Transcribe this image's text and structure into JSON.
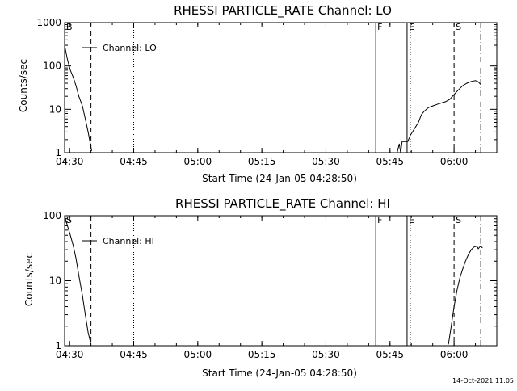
{
  "footer": {
    "timestamp": "14-Oct-2021 11:05"
  },
  "chart_data": [
    {
      "type": "line",
      "title": "RHESSI PARTICLE_RATE Channel: LO",
      "xlabel": "Start Time (24-Jan-05 04:28:50)",
      "ylabel": "Counts/sec",
      "yscale": "log",
      "ylim": [
        1,
        1000
      ],
      "xlim": [
        "04:28:50",
        "06:10:00"
      ],
      "x_ticks": [
        "04:30",
        "04:45",
        "05:00",
        "05:15",
        "05:30",
        "05:45",
        "06:00"
      ],
      "y_ticks": [
        "1",
        "10",
        "100",
        "1000"
      ],
      "legend": {
        "label": "Channel: LO",
        "placement": "top-left"
      },
      "markers": [
        {
          "label": "B",
          "time": "04:28:50",
          "style": "solid"
        },
        {
          "label": "",
          "time": "04:35:00",
          "style": "dashed"
        },
        {
          "label": "",
          "time": "04:45:00",
          "style": "dotted"
        },
        {
          "label": "F",
          "time": "05:41:40",
          "style": "solid"
        },
        {
          "label": "E",
          "time": "05:49:00",
          "style": "solid"
        },
        {
          "label": "",
          "time": "05:49:45",
          "style": "dotted"
        },
        {
          "label": "S",
          "time": "06:00:00",
          "style": "dashed"
        },
        {
          "label": "",
          "time": "06:06:15",
          "style": "dashdot"
        }
      ],
      "series": [
        {
          "color": "#000000",
          "segments": [
            [
              [
                "04:28:50",
                300
              ],
              [
                "04:29:30",
                140
              ],
              [
                "04:30:10",
                80
              ],
              [
                "04:30:50",
                55
              ],
              [
                "04:31:30",
                35
              ],
              [
                "04:32:10",
                20
              ],
              [
                "04:33:00",
                12
              ],
              [
                "04:33:40",
                6
              ],
              [
                "04:34:20",
                3
              ],
              [
                "04:35:10",
                1.1
              ]
            ],
            [
              [
                "05:46:40",
                1
              ],
              [
                "05:47:10",
                1.6
              ],
              [
                "05:47:30",
                1
              ],
              [
                "05:47:50",
                1.8
              ],
              [
                "05:49:10",
                1.8
              ],
              [
                "05:49:45",
                2.5
              ],
              [
                "05:50:40",
                3.5
              ],
              [
                "05:51:40",
                5
              ],
              [
                "05:52:20",
                7.5
              ],
              [
                "05:53:00",
                9
              ],
              [
                "05:54:00",
                11
              ],
              [
                "05:55:00",
                12
              ],
              [
                "05:56:00",
                13
              ],
              [
                "05:57:00",
                14
              ],
              [
                "05:58:00",
                15
              ],
              [
                "05:59:00",
                17
              ],
              [
                "06:00:00",
                22
              ],
              [
                "06:01:00",
                28
              ],
              [
                "06:02:00",
                35
              ],
              [
                "06:03:00",
                40
              ],
              [
                "06:04:00",
                44
              ],
              [
                "06:05:00",
                46
              ],
              [
                "06:05:40",
                43
              ],
              [
                "06:06:10",
                38
              ]
            ]
          ]
        }
      ]
    },
    {
      "type": "line",
      "title": "RHESSI PARTICLE_RATE Channel: HI",
      "xlabel": "Start Time (24-Jan-05 04:28:50)",
      "ylabel": "Counts/sec",
      "yscale": "log",
      "ylim": [
        1,
        100
      ],
      "xlim": [
        "04:28:50",
        "06:10:00"
      ],
      "x_ticks": [
        "04:30",
        "04:45",
        "05:00",
        "05:15",
        "05:30",
        "05:45",
        "06:00"
      ],
      "y_ticks": [
        "1",
        "10",
        "100"
      ],
      "legend": {
        "label": "Channel: HI",
        "placement": "top-left"
      },
      "markers": [
        {
          "label": "S",
          "time": "04:28:50",
          "style": "solid"
        },
        {
          "label": "",
          "time": "04:35:00",
          "style": "dashed"
        },
        {
          "label": "",
          "time": "04:45:00",
          "style": "dotted"
        },
        {
          "label": "F",
          "time": "05:41:40",
          "style": "solid"
        },
        {
          "label": "E",
          "time": "05:49:00",
          "style": "solid"
        },
        {
          "label": "",
          "time": "05:49:45",
          "style": "dotted"
        },
        {
          "label": "S",
          "time": "06:00:00",
          "style": "dashed"
        },
        {
          "label": "",
          "time": "06:06:15",
          "style": "dashdot"
        }
      ],
      "series": [
        {
          "color": "#000000",
          "segments": [
            [
              [
                "04:28:50",
                100
              ],
              [
                "04:29:30",
                70
              ],
              [
                "04:30:10",
                50
              ],
              [
                "04:30:50",
                35
              ],
              [
                "04:31:30",
                22
              ],
              [
                "04:32:10",
                12
              ],
              [
                "04:33:00",
                6
              ],
              [
                "04:33:40",
                3
              ],
              [
                "04:34:20",
                1.6
              ],
              [
                "04:35:00",
                1.05
              ]
            ],
            [
              [
                "05:58:40",
                1.05
              ],
              [
                "05:59:20",
                2
              ],
              [
                "06:00:00",
                4
              ],
              [
                "06:00:40",
                7
              ],
              [
                "06:01:20",
                11
              ],
              [
                "06:02:00",
                15
              ],
              [
                "06:02:40",
                20
              ],
              [
                "06:03:20",
                25
              ],
              [
                "06:04:00",
                30
              ],
              [
                "06:04:40",
                33
              ],
              [
                "06:05:20",
                34
              ],
              [
                "06:05:40",
                31
              ],
              [
                "06:06:10",
                34
              ],
              [
                "06:06:40",
                32
              ]
            ]
          ]
        }
      ]
    }
  ]
}
